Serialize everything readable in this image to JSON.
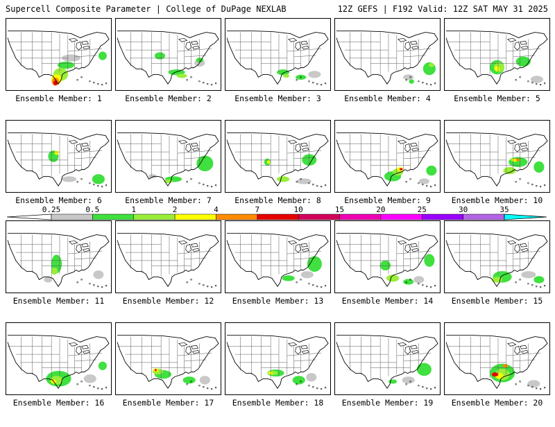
{
  "header": {
    "title": "Supercell Composite Parameter | College of DuPage NEXLAB",
    "run_info": "12Z GEFS | F192 Valid: 12Z SAT MAY 31 2025"
  },
  "colors": {
    "gray": "#c8c8c8",
    "green": "#3fe03f",
    "lime": "#9aee3a",
    "yellow": "#ffff00",
    "orange": "#ff8c00",
    "red": "#e60000",
    "crimson": "#d2005a",
    "magenta": "#f000b4",
    "pink": "#ff00ff",
    "violet": "#9a00ff",
    "lavender": "#b464e6",
    "cyan": "#00ffff"
  },
  "legend": {
    "labels": [
      "0.25",
      "0.5",
      "1",
      "2",
      "4",
      "7",
      "10",
      "15",
      "20",
      "25",
      "30",
      "35"
    ],
    "bins": [
      "gray",
      "green",
      "lime",
      "yellow",
      "orange",
      "red",
      "crimson",
      "magenta",
      "pink",
      "violet",
      "lavender"
    ]
  },
  "members": [
    {
      "caption": "Ensemble Member: 1",
      "blobs": [
        [
          "gray",
          0.62,
          0.55,
          0.18,
          0.1
        ],
        [
          "green",
          0.57,
          0.65,
          0.16,
          0.1
        ],
        [
          "green",
          0.92,
          0.52,
          0.08,
          0.12
        ],
        [
          "lime",
          0.52,
          0.78,
          0.14,
          0.18
        ],
        [
          "yellow",
          0.48,
          0.85,
          0.1,
          0.14
        ],
        [
          "orange",
          0.47,
          0.88,
          0.07,
          0.11
        ],
        [
          "red",
          0.47,
          0.9,
          0.04,
          0.07
        ]
      ]
    },
    {
      "caption": "Ensemble Member: 2",
      "blobs": [
        [
          "green",
          0.42,
          0.52,
          0.1,
          0.1
        ],
        [
          "green",
          0.58,
          0.75,
          0.16,
          0.08
        ],
        [
          "lime",
          0.63,
          0.8,
          0.1,
          0.06
        ],
        [
          "gray",
          0.8,
          0.62,
          0.1,
          0.1
        ],
        [
          "green",
          0.8,
          0.58,
          0.07,
          0.07
        ]
      ]
    },
    {
      "caption": "Ensemble Member: 3",
      "blobs": [
        [
          "green",
          0.55,
          0.75,
          0.12,
          0.08
        ],
        [
          "lime",
          0.58,
          0.8,
          0.06,
          0.05
        ],
        [
          "gray",
          0.85,
          0.78,
          0.12,
          0.1
        ],
        [
          "green",
          0.72,
          0.82,
          0.1,
          0.07
        ]
      ]
    },
    {
      "caption": "Ensemble Member: 4",
      "blobs": [
        [
          "green",
          0.9,
          0.7,
          0.12,
          0.18
        ],
        [
          "lime",
          0.92,
          0.65,
          0.05,
          0.06
        ],
        [
          "gray",
          0.7,
          0.82,
          0.1,
          0.08
        ],
        [
          "green",
          0.73,
          0.88,
          0.05,
          0.06
        ]
      ]
    },
    {
      "caption": "Ensemble Member: 5",
      "blobs": [
        [
          "green",
          0.5,
          0.68,
          0.14,
          0.2
        ],
        [
          "lime",
          0.52,
          0.68,
          0.1,
          0.14
        ],
        [
          "yellow",
          0.5,
          0.7,
          0.05,
          0.07
        ],
        [
          "green",
          0.75,
          0.6,
          0.14,
          0.14
        ],
        [
          "gray",
          0.88,
          0.85,
          0.12,
          0.1
        ]
      ]
    },
    {
      "caption": "Ensemble Member: 6",
      "blobs": [
        [
          "green",
          0.45,
          0.5,
          0.1,
          0.16
        ],
        [
          "yellow",
          0.48,
          0.45,
          0.04,
          0.06
        ],
        [
          "gray",
          0.6,
          0.82,
          0.14,
          0.08
        ],
        [
          "green",
          0.88,
          0.82,
          0.12,
          0.14
        ]
      ]
    },
    {
      "caption": "Ensemble Member: 7",
      "blobs": [
        [
          "green",
          0.55,
          0.82,
          0.16,
          0.08
        ],
        [
          "lime",
          0.5,
          0.85,
          0.08,
          0.05
        ],
        [
          "green",
          0.85,
          0.6,
          0.16,
          0.22
        ],
        [
          "gray",
          0.35,
          0.78,
          0.08,
          0.06
        ]
      ]
    },
    {
      "caption": "Ensemble Member: 8",
      "blobs": [
        [
          "green",
          0.4,
          0.58,
          0.06,
          0.1
        ],
        [
          "yellow",
          0.41,
          0.58,
          0.03,
          0.05
        ],
        [
          "green",
          0.8,
          0.55,
          0.14,
          0.16
        ],
        [
          "lime",
          0.55,
          0.82,
          0.12,
          0.08
        ],
        [
          "gray",
          0.75,
          0.85,
          0.14,
          0.08
        ]
      ]
    },
    {
      "caption": "Ensemble Member: 9",
      "blobs": [
        [
          "green",
          0.55,
          0.78,
          0.16,
          0.14
        ],
        [
          "lime",
          0.6,
          0.72,
          0.1,
          0.1
        ],
        [
          "yellow",
          0.62,
          0.68,
          0.06,
          0.06
        ],
        [
          "red",
          0.63,
          0.68,
          0.03,
          0.03
        ],
        [
          "green",
          0.92,
          0.7,
          0.1,
          0.14
        ],
        [
          "gray",
          0.85,
          0.85,
          0.1,
          0.08
        ]
      ]
    },
    {
      "caption": "Ensemble Member: 10",
      "blobs": [
        [
          "green",
          0.7,
          0.58,
          0.18,
          0.14
        ],
        [
          "yellow",
          0.67,
          0.55,
          0.07,
          0.05
        ],
        [
          "orange",
          0.7,
          0.55,
          0.04,
          0.04
        ],
        [
          "lime",
          0.62,
          0.7,
          0.12,
          0.1
        ],
        [
          "green",
          0.9,
          0.65,
          0.1,
          0.16
        ]
      ]
    },
    {
      "caption": "Ensemble Member: 11",
      "blobs": [
        [
          "green",
          0.48,
          0.6,
          0.1,
          0.26
        ],
        [
          "lime",
          0.46,
          0.7,
          0.06,
          0.1
        ],
        [
          "gray",
          0.4,
          0.82,
          0.08,
          0.08
        ],
        [
          "gray",
          0.88,
          0.75,
          0.1,
          0.12
        ]
      ]
    },
    {
      "caption": "Ensemble Member: 12",
      "blobs": []
    },
    {
      "caption": "Ensemble Member: 13",
      "blobs": [
        [
          "green",
          0.6,
          0.8,
          0.12,
          0.08
        ],
        [
          "green",
          0.85,
          0.6,
          0.14,
          0.22
        ],
        [
          "gray",
          0.78,
          0.75,
          0.12,
          0.1
        ]
      ]
    },
    {
      "caption": "Ensemble Member: 14",
      "blobs": [
        [
          "green",
          0.48,
          0.62,
          0.1,
          0.14
        ],
        [
          "lime",
          0.55,
          0.8,
          0.12,
          0.1
        ],
        [
          "green",
          0.7,
          0.85,
          0.1,
          0.08
        ],
        [
          "green",
          0.9,
          0.55,
          0.1,
          0.18
        ],
        [
          "gray",
          0.8,
          0.82,
          0.1,
          0.1
        ]
      ]
    },
    {
      "caption": "Ensemble Member: 15",
      "blobs": [
        [
          "green",
          0.55,
          0.78,
          0.18,
          0.16
        ],
        [
          "lime",
          0.5,
          0.82,
          0.1,
          0.08
        ],
        [
          "gray",
          0.8,
          0.75,
          0.14,
          0.1
        ],
        [
          "green",
          0.9,
          0.82,
          0.1,
          0.1
        ]
      ]
    },
    {
      "caption": "Ensemble Member: 16",
      "blobs": [
        [
          "green",
          0.5,
          0.78,
          0.24,
          0.22
        ],
        [
          "lime",
          0.48,
          0.8,
          0.12,
          0.12
        ],
        [
          "yellow",
          0.45,
          0.82,
          0.05,
          0.06
        ],
        [
          "gray",
          0.8,
          0.78,
          0.12,
          0.12
        ],
        [
          "green",
          0.92,
          0.6,
          0.08,
          0.12
        ]
      ]
    },
    {
      "caption": "Ensemble Member: 17",
      "blobs": [
        [
          "green",
          0.45,
          0.72,
          0.16,
          0.12
        ],
        [
          "lime",
          0.4,
          0.68,
          0.1,
          0.08
        ],
        [
          "yellow",
          0.38,
          0.66,
          0.05,
          0.05
        ],
        [
          "red",
          0.38,
          0.66,
          0.02,
          0.03
        ],
        [
          "green",
          0.7,
          0.8,
          0.12,
          0.1
        ],
        [
          "gray",
          0.85,
          0.8,
          0.1,
          0.12
        ]
      ]
    },
    {
      "caption": "Ensemble Member: 18",
      "blobs": [
        [
          "green",
          0.48,
          0.7,
          0.16,
          0.1
        ],
        [
          "lime",
          0.45,
          0.7,
          0.1,
          0.06
        ],
        [
          "yellow",
          0.43,
          0.7,
          0.04,
          0.04
        ],
        [
          "green",
          0.7,
          0.8,
          0.12,
          0.12
        ],
        [
          "gray",
          0.82,
          0.76,
          0.1,
          0.12
        ]
      ]
    },
    {
      "caption": "Ensemble Member: 19",
      "blobs": [
        [
          "green",
          0.85,
          0.65,
          0.14,
          0.18
        ],
        [
          "gray",
          0.7,
          0.8,
          0.12,
          0.1
        ],
        [
          "green",
          0.55,
          0.82,
          0.08,
          0.06
        ]
      ]
    },
    {
      "caption": "Ensemble Member: 20",
      "blobs": [
        [
          "green",
          0.55,
          0.7,
          0.24,
          0.26
        ],
        [
          "lime",
          0.55,
          0.72,
          0.14,
          0.16
        ],
        [
          "yellow",
          0.52,
          0.74,
          0.08,
          0.08
        ],
        [
          "red",
          0.48,
          0.72,
          0.06,
          0.06
        ],
        [
          "orange",
          0.58,
          0.6,
          0.05,
          0.05
        ],
        [
          "gray",
          0.85,
          0.85,
          0.12,
          0.1
        ]
      ]
    }
  ]
}
